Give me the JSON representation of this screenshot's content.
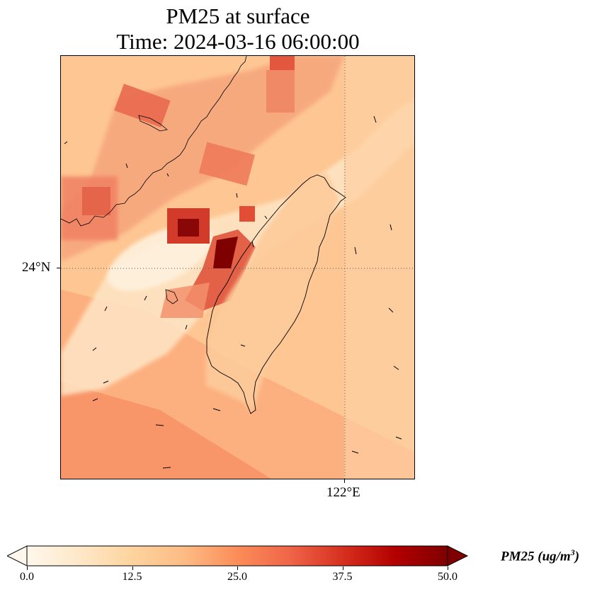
{
  "title": {
    "line1": "PM25 at surface",
    "line2": "Time: 2024-03-16 06:00:00"
  },
  "axes": {
    "lat_label": "24°N",
    "lon_label": "122°E"
  },
  "colorbar": {
    "label_prefix": "PM25 (ug/m",
    "label_sup": "3",
    "label_suffix": ")",
    "ticks": [
      "0.0",
      "12.5",
      "25.0",
      "37.5",
      "50.0"
    ],
    "vmin": 0,
    "vmax": 50,
    "colormap": "OrRd",
    "colors": [
      "#fff7ec",
      "#fee8c8",
      "#fdd49e",
      "#fdbb84",
      "#fc8d59",
      "#ef6548",
      "#d7301f",
      "#b30000",
      "#7f0000"
    ],
    "extend": "both"
  },
  "map": {
    "background_value": 18,
    "gridlines": "dotted",
    "coastline_color": "#000000",
    "hotspots": [
      {
        "region": "north coast band",
        "value": 30
      },
      {
        "region": "central-west coast",
        "value": 50
      },
      {
        "region": "inland near Taichung",
        "value": 48
      },
      {
        "region": "southwest offshore",
        "value": 24
      }
    ]
  }
}
